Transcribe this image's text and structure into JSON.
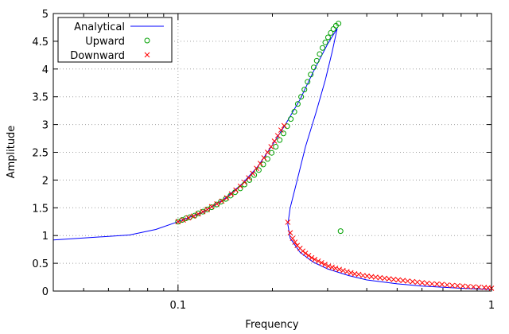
{
  "chart_data": {
    "type": "line",
    "xlabel": "Frequency",
    "ylabel": "Amplitude",
    "x_scale": "log",
    "xlim": [
      0.04,
      1
    ],
    "ylim": [
      0,
      5
    ],
    "grid": true,
    "legend_position": "top-left",
    "x_ticks": [
      {
        "value": 0.1,
        "label": "0.1"
      },
      {
        "value": 1,
        "label": "1"
      }
    ],
    "y_ticks": [
      {
        "value": 0,
        "label": "0"
      },
      {
        "value": 0.5,
        "label": "0.5"
      },
      {
        "value": 1,
        "label": "1"
      },
      {
        "value": 1.5,
        "label": "1.5"
      },
      {
        "value": 2,
        "label": "2"
      },
      {
        "value": 2.5,
        "label": "2.5"
      },
      {
        "value": 3,
        "label": "3"
      },
      {
        "value": 3.5,
        "label": "3.5"
      },
      {
        "value": 4,
        "label": "4"
      },
      {
        "value": 4.5,
        "label": "4.5"
      },
      {
        "value": 5,
        "label": "5"
      }
    ],
    "series": [
      {
        "name": "Analytical",
        "kind": "line",
        "color": "#0000ff",
        "points": [
          [
            0.04,
            0.92
          ],
          [
            0.07,
            1.01
          ],
          [
            0.085,
            1.11
          ],
          [
            0.1,
            1.25
          ],
          [
            0.12,
            1.42
          ],
          [
            0.14,
            1.65
          ],
          [
            0.16,
            1.93
          ],
          [
            0.18,
            2.25
          ],
          [
            0.2,
            2.63
          ],
          [
            0.22,
            3.0
          ],
          [
            0.245,
            3.45
          ],
          [
            0.27,
            3.95
          ],
          [
            0.3,
            4.45
          ],
          [
            0.322,
            4.73
          ],
          [
            0.31,
            4.3
          ],
          [
            0.295,
            3.8
          ],
          [
            0.275,
            3.2
          ],
          [
            0.255,
            2.6
          ],
          [
            0.24,
            2.0
          ],
          [
            0.228,
            1.5
          ],
          [
            0.224,
            1.2
          ],
          [
            0.228,
            0.95
          ],
          [
            0.245,
            0.7
          ],
          [
            0.27,
            0.52
          ],
          [
            0.3,
            0.4
          ],
          [
            0.35,
            0.28
          ],
          [
            0.4,
            0.2
          ],
          [
            0.5,
            0.13
          ],
          [
            0.6,
            0.09
          ],
          [
            0.8,
            0.05
          ],
          [
            1.0,
            0.03
          ]
        ]
      },
      {
        "name": "Upward",
        "kind": "scatter",
        "marker": "circle",
        "color": "#00a000",
        "points": [
          [
            0.1,
            1.25
          ],
          [
            0.103,
            1.28
          ],
          [
            0.106,
            1.31
          ],
          [
            0.109,
            1.33
          ],
          [
            0.113,
            1.36
          ],
          [
            0.116,
            1.4
          ],
          [
            0.12,
            1.43
          ],
          [
            0.124,
            1.47
          ],
          [
            0.128,
            1.51
          ],
          [
            0.133,
            1.56
          ],
          [
            0.137,
            1.61
          ],
          [
            0.142,
            1.66
          ],
          [
            0.147,
            1.72
          ],
          [
            0.152,
            1.78
          ],
          [
            0.158,
            1.85
          ],
          [
            0.163,
            1.92
          ],
          [
            0.169,
            2.0
          ],
          [
            0.175,
            2.09
          ],
          [
            0.181,
            2.18
          ],
          [
            0.187,
            2.28
          ],
          [
            0.193,
            2.38
          ],
          [
            0.199,
            2.49
          ],
          [
            0.205,
            2.6
          ],
          [
            0.211,
            2.72
          ],
          [
            0.217,
            2.84
          ],
          [
            0.223,
            2.97
          ],
          [
            0.229,
            3.1
          ],
          [
            0.235,
            3.23
          ],
          [
            0.241,
            3.37
          ],
          [
            0.247,
            3.5
          ],
          [
            0.253,
            3.63
          ],
          [
            0.259,
            3.77
          ],
          [
            0.265,
            3.9
          ],
          [
            0.271,
            4.03
          ],
          [
            0.277,
            4.15
          ],
          [
            0.283,
            4.27
          ],
          [
            0.289,
            4.38
          ],
          [
            0.295,
            4.48
          ],
          [
            0.301,
            4.57
          ],
          [
            0.307,
            4.65
          ],
          [
            0.313,
            4.72
          ],
          [
            0.319,
            4.78
          ],
          [
            0.325,
            4.82
          ],
          [
            0.33,
            1.08
          ]
        ]
      },
      {
        "name": "Downward",
        "kind": "scatter",
        "marker": "cross",
        "color": "#ff0000",
        "points": [
          [
            0.1,
            1.25
          ],
          [
            0.104,
            1.28
          ],
          [
            0.108,
            1.32
          ],
          [
            0.112,
            1.35
          ],
          [
            0.116,
            1.39
          ],
          [
            0.12,
            1.43
          ],
          [
            0.124,
            1.47
          ],
          [
            0.128,
            1.52
          ],
          [
            0.133,
            1.57
          ],
          [
            0.138,
            1.62
          ],
          [
            0.143,
            1.68
          ],
          [
            0.148,
            1.75
          ],
          [
            0.153,
            1.82
          ],
          [
            0.158,
            1.89
          ],
          [
            0.163,
            1.96
          ],
          [
            0.168,
            2.04
          ],
          [
            0.173,
            2.12
          ],
          [
            0.178,
            2.21
          ],
          [
            0.183,
            2.3
          ],
          [
            0.188,
            2.4
          ],
          [
            0.193,
            2.5
          ],
          [
            0.198,
            2.6
          ],
          [
            0.203,
            2.7
          ],
          [
            0.208,
            2.8
          ],
          [
            0.213,
            2.9
          ],
          [
            0.218,
            2.98
          ],
          [
            0.224,
            1.24
          ],
          [
            0.228,
            1.05
          ],
          [
            0.232,
            0.95
          ],
          [
            0.236,
            0.88
          ],
          [
            0.24,
            0.82
          ],
          [
            0.245,
            0.77
          ],
          [
            0.25,
            0.72
          ],
          [
            0.255,
            0.68
          ],
          [
            0.261,
            0.64
          ],
          [
            0.267,
            0.6
          ],
          [
            0.273,
            0.57
          ],
          [
            0.28,
            0.54
          ],
          [
            0.287,
            0.51
          ],
          [
            0.294,
            0.48
          ],
          [
            0.302,
            0.45
          ],
          [
            0.31,
            0.43
          ],
          [
            0.318,
            0.41
          ],
          [
            0.327,
            0.39
          ],
          [
            0.336,
            0.37
          ],
          [
            0.346,
            0.35
          ],
          [
            0.356,
            0.33
          ],
          [
            0.366,
            0.31
          ],
          [
            0.377,
            0.3
          ],
          [
            0.389,
            0.28
          ],
          [
            0.401,
            0.27
          ],
          [
            0.414,
            0.26
          ],
          [
            0.427,
            0.25
          ],
          [
            0.441,
            0.24
          ],
          [
            0.456,
            0.23
          ],
          [
            0.471,
            0.22
          ],
          [
            0.487,
            0.21
          ],
          [
            0.504,
            0.2
          ],
          [
            0.522,
            0.19
          ],
          [
            0.54,
            0.18
          ],
          [
            0.56,
            0.17
          ],
          [
            0.58,
            0.16
          ],
          [
            0.601,
            0.15
          ],
          [
            0.623,
            0.14
          ],
          [
            0.646,
            0.13
          ],
          [
            0.67,
            0.125
          ],
          [
            0.695,
            0.12
          ],
          [
            0.722,
            0.11
          ],
          [
            0.75,
            0.1
          ],
          [
            0.779,
            0.095
          ],
          [
            0.81,
            0.09
          ],
          [
            0.842,
            0.08
          ],
          [
            0.876,
            0.075
          ],
          [
            0.911,
            0.07
          ],
          [
            0.948,
            0.065
          ],
          [
            0.975,
            0.06
          ],
          [
            1.0,
            0.05
          ]
        ]
      }
    ]
  }
}
